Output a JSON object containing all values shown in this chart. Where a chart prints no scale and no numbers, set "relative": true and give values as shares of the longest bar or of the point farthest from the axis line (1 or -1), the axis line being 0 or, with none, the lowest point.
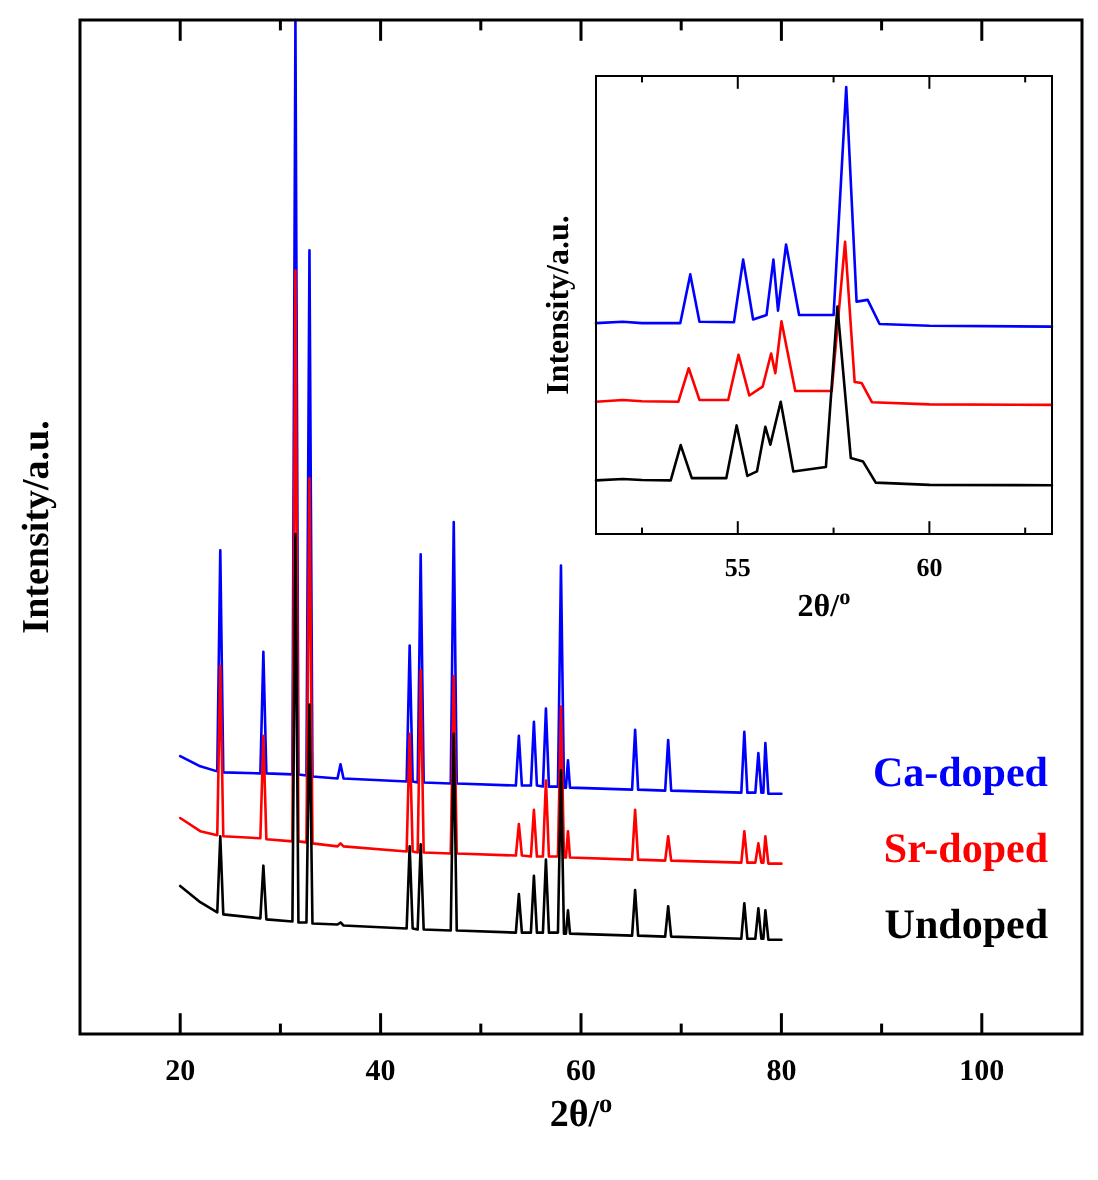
{
  "chart_data": [
    {
      "type": "line",
      "xlabel": "2θ/$^{o}$",
      "ylabel": "Intensity/a.u.",
      "relative": true,
      "xlim": [
        10,
        110
      ],
      "xticks": [
        20,
        {
          "value": 30,
          "label": null
        },
        40,
        {
          "value": 50,
          "label": null
        },
        60,
        {
          "value": 70,
          "label": null
        },
        80,
        {
          "value": 90,
          "label": null
        },
        100
      ],
      "grid": false,
      "legend": "right",
      "x": [
        20,
        22,
        23.7,
        24.0,
        24.3,
        28.0,
        28.3,
        28.6,
        31.2,
        31.5,
        31.8,
        32.6,
        32.9,
        33.2,
        35.7,
        36.0,
        36.3,
        42.6,
        42.9,
        43.2,
        43.7,
        44.0,
        44.3,
        47.0,
        47.3,
        47.6,
        53.5,
        53.8,
        54.1,
        55.0,
        55.3,
        55.6,
        56.2,
        56.5,
        56.8,
        57.7,
        58.0,
        58.3,
        58.5,
        58.7,
        58.9,
        65.1,
        65.4,
        65.7,
        68.4,
        68.7,
        69.0,
        76.0,
        76.3,
        76.6,
        77.4,
        77.7,
        78.0,
        78.2,
        78.4,
        78.7,
        80
      ],
      "series": [
        {
          "name": "Ca-doped",
          "color": "#0000ff",
          "values": [
            0.274,
            0.264,
            0.259,
            0.477,
            0.258,
            0.257,
            0.377,
            0.257,
            0.256,
            1,
            0.256,
            0.255,
            0.773,
            0.254,
            0.252,
            0.266,
            0.252,
            0.249,
            0.383,
            0.249,
            0.248,
            0.473,
            0.248,
            0.247,
            0.505,
            0.247,
            0.245,
            0.294,
            0.245,
            0.245,
            0.308,
            0.245,
            0.244,
            0.321,
            0.244,
            0.244,
            0.462,
            0.243,
            0.243,
            0.27,
            0.243,
            0.241,
            0.3,
            0.241,
            0.24,
            0.29,
            0.24,
            0.238,
            0.298,
            0.238,
            0.238,
            0.277,
            0.238,
            0.238,
            0.287,
            0.237,
            0.237
          ]
        },
        {
          "name": "Sr-doped",
          "color": "#ff0000",
          "values": [
            0.213,
            0.2,
            0.196,
            0.363,
            0.195,
            0.193,
            0.294,
            0.192,
            0.19,
            0.753,
            0.19,
            0.189,
            0.548,
            0.188,
            0.185,
            0.188,
            0.185,
            0.18,
            0.296,
            0.18,
            0.179,
            0.359,
            0.179,
            0.178,
            0.353,
            0.178,
            0.176,
            0.207,
            0.176,
            0.175,
            0.221,
            0.175,
            0.175,
            0.25,
            0.175,
            0.175,
            0.323,
            0.174,
            0.174,
            0.2,
            0.174,
            0.172,
            0.221,
            0.172,
            0.171,
            0.195,
            0.171,
            0.169,
            0.2,
            0.169,
            0.169,
            0.188,
            0.169,
            0.169,
            0.195,
            0.168,
            0.168
          ]
        },
        {
          "name": "Undoped",
          "color": "#000000",
          "values": [
            0.146,
            0.13,
            0.12,
            0.195,
            0.118,
            0.114,
            0.166,
            0.113,
            0.111,
            0.493,
            0.11,
            0.11,
            0.325,
            0.109,
            0.108,
            0.11,
            0.107,
            0.104,
            0.185,
            0.104,
            0.103,
            0.187,
            0.103,
            0.102,
            0.296,
            0.102,
            0.1,
            0.138,
            0.1,
            0.1,
            0.156,
            0.1,
            0.1,
            0.172,
            0.1,
            0.1,
            0.26,
            0.099,
            0.099,
            0.122,
            0.099,
            0.097,
            0.142,
            0.097,
            0.096,
            0.126,
            0.096,
            0.094,
            0.129,
            0.094,
            0.094,
            0.124,
            0.094,
            0.094,
            0.122,
            0.093,
            0.093
          ]
        }
      ]
    },
    {
      "type": "line",
      "xlabel": "2θ/$^{o}$",
      "ylabel": "Intensity/a.u.",
      "relative": true,
      "xlim": [
        51.3,
        63.2
      ],
      "xticks": [
        {
          "value": 52.5,
          "label": null
        },
        55,
        {
          "value": 57.5,
          "label": null
        },
        60,
        {
          "value": 62.5,
          "label": null
        }
      ],
      "grid": false,
      "legend": false,
      "series": [
        {
          "color": "#0000ff",
          "x": [
            51.3,
            52,
            52.5,
            53.5,
            53.76,
            54.0,
            54.9,
            55.14,
            55.4,
            55.75,
            55.93,
            56.05,
            56.26,
            56.6,
            57.5,
            57.83,
            58.1,
            58.39,
            58.7,
            60,
            63.2
          ],
          "values": [
            0.472,
            0.475,
            0.472,
            0.472,
            0.581,
            0.475,
            0.474,
            0.614,
            0.48,
            0.49,
            0.614,
            0.5,
            0.648,
            0.49,
            0.49,
            1,
            0.52,
            0.524,
            0.47,
            0.466,
            0.464
          ]
        },
        {
          "color": "#ff0000",
          "x": [
            51.3,
            52,
            52.5,
            53.45,
            53.72,
            54.0,
            54.75,
            55.02,
            55.3,
            55.65,
            55.87,
            55.98,
            56.14,
            56.5,
            57.45,
            57.8,
            58.05,
            58.23,
            58.5,
            60,
            63.2
          ],
          "values": [
            0.296,
            0.3,
            0.297,
            0.296,
            0.371,
            0.3,
            0.3,
            0.401,
            0.31,
            0.33,
            0.404,
            0.36,
            0.476,
            0.32,
            0.32,
            0.654,
            0.34,
            0.338,
            0.295,
            0.29,
            0.289
          ]
        },
        {
          "color": "#000000",
          "x": [
            51.3,
            52,
            52.5,
            53.25,
            53.51,
            53.8,
            54.7,
            54.97,
            55.25,
            55.5,
            55.72,
            55.85,
            56.12,
            56.45,
            57.3,
            57.6,
            57.95,
            58.27,
            58.6,
            60,
            63.2
          ],
          "values": [
            0.12,
            0.123,
            0.121,
            0.12,
            0.199,
            0.125,
            0.125,
            0.243,
            0.13,
            0.14,
            0.24,
            0.2,
            0.296,
            0.14,
            0.15,
            0.509,
            0.17,
            0.162,
            0.115,
            0.11,
            0.109
          ]
        }
      ]
    }
  ]
}
